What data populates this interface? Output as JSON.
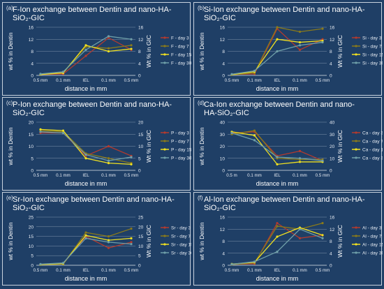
{
  "x_categories": [
    "0.5 mm",
    "0.1 mm",
    "IEL",
    "0.1 mm",
    "0.5 mm"
  ],
  "colors": [
    "#b33a2e",
    "#8a7a1a",
    "#f0e020",
    "#6f9fa8"
  ],
  "chart_data": [
    {
      "letter": "(a)",
      "type": "line",
      "title": "F-Ion exchange between Dentin and nano-HA-SiO₂-GIC",
      "xlabel": "distance in mm",
      "ylabel": "wt % in Dentin",
      "y2label": "Wt % in GIC",
      "ylim": [
        0,
        16
      ],
      "yticks": [
        "0",
        "4",
        "8",
        "12",
        "16"
      ],
      "categories": [
        "0.5 mm",
        "0.1 mm",
        "IEL",
        "0.1 mm",
        "0.5 mm"
      ],
      "series": [
        {
          "name": "F - day 3",
          "values": [
            0.3,
            0.5,
            6.5,
            12.5,
            8.5
          ]
        },
        {
          "name": "F - day 7",
          "values": [
            0.4,
            1.0,
            9.5,
            9.0,
            10.0
          ]
        },
        {
          "name": "F - day 15",
          "values": [
            0.3,
            0.8,
            10.0,
            8.0,
            8.8
          ]
        },
        {
          "name": "F - day 30",
          "values": [
            0.5,
            1.2,
            8.5,
            13.0,
            12.0
          ]
        }
      ]
    },
    {
      "letter": "(b)",
      "type": "line",
      "title": "Si-Ion exchange between Dentin and nano-HA-SiO₂-GIC",
      "xlabel": "distance in mm",
      "ylabel": "wt % in Dentin",
      "y2label": "Wt % in GIC",
      "ylim": [
        0,
        16
      ],
      "yticks": [
        "0",
        "4",
        "8",
        "12",
        "16"
      ],
      "categories": [
        "0.5 mm",
        "0.1 mm",
        "IEL",
        "0.1 mm",
        "0.5 mm"
      ],
      "series": [
        {
          "name": "Si - day 3",
          "values": [
            0.3,
            0.5,
            15.5,
            8.5,
            12.0
          ]
        },
        {
          "name": "Si - day 7",
          "values": [
            0.2,
            0.8,
            16.0,
            14.5,
            15.5
          ]
        },
        {
          "name": "Si - day 15",
          "values": [
            0.3,
            1.2,
            12.0,
            11.0,
            11.5
          ]
        },
        {
          "name": "Si - day 30",
          "values": [
            0.4,
            1.5,
            8.0,
            10.0,
            11.0
          ]
        }
      ]
    },
    {
      "letter": "(c)",
      "type": "line",
      "title": "P-Ion exchange between Dentin and nano-HA-SiO₂-GIC",
      "xlabel": "distance in mm",
      "ylabel": "wt % in Dentin",
      "y2label": "Wt % in GIC",
      "ylim": [
        0,
        20
      ],
      "yticks": [
        "0",
        "5",
        "10",
        "15",
        "20"
      ],
      "categories": [
        "0.5 mm",
        "0.1 mm",
        "IEL",
        "0.1 mm",
        "0.5 mm"
      ],
      "series": [
        {
          "name": "P - day 3",
          "values": [
            15.5,
            15.5,
            6.0,
            10.0,
            6.0
          ]
        },
        {
          "name": "P - day 7",
          "values": [
            16.5,
            16.0,
            7.0,
            5.0,
            3.0
          ]
        },
        {
          "name": "P - day 15",
          "values": [
            17.0,
            16.5,
            5.0,
            3.0,
            2.5
          ]
        },
        {
          "name": "P - day 30",
          "values": [
            16.0,
            15.5,
            6.5,
            4.0,
            5.5
          ]
        }
      ]
    },
    {
      "letter": "(d)",
      "type": "line",
      "title": "Ca-Ion exchange between Dentin and nano-HA-SiO₂-GIC",
      "xlabel": "distance in mm",
      "ylabel": "wt % in Dentin",
      "y2label": "Wt % in GIC",
      "ylim": [
        0,
        40
      ],
      "yticks": [
        "0",
        "10",
        "20",
        "30",
        "40"
      ],
      "categories": [
        "0.5 m",
        "0.1 mm",
        "IEL",
        "0.1 mm",
        "0.5 mm"
      ],
      "series": [
        {
          "name": "Ca - day 3",
          "values": [
            31.0,
            32.0,
            12.0,
            16.0,
            8.0
          ]
        },
        {
          "name": "Ca - day 7",
          "values": [
            30.0,
            33.0,
            10.0,
            9.0,
            9.0
          ]
        },
        {
          "name": "Ca - day 15",
          "values": [
            32.0,
            29.0,
            5.0,
            7.0,
            7.0
          ]
        },
        {
          "name": "Ca - day 30",
          "values": [
            31.0,
            25.0,
            11.0,
            10.0,
            8.0
          ]
        }
      ]
    },
    {
      "letter": "(e)",
      "type": "line",
      "title": "Sr-Ion exchange between Dentin and nano-HA-SiO₂-GIC",
      "xlabel": "distance in mm",
      "ylabel": "wt % in Dentin",
      "y2label": "Wt % in GIC",
      "ylim": [
        0,
        25
      ],
      "yticks": [
        "0",
        "5",
        "10",
        "15",
        "20",
        "25"
      ],
      "categories": [
        "0.5 mm",
        "0.1 mm",
        "IEL",
        "0.1 mm",
        "0.5 mm"
      ],
      "series": [
        {
          "name": "Sr - day 3",
          "values": [
            0.5,
            0.8,
            15.0,
            9.0,
            12.0
          ]
        },
        {
          "name": "Sr - day 7",
          "values": [
            0.3,
            0.6,
            17.0,
            15.0,
            19.0
          ]
        },
        {
          "name": "Sr - day 15",
          "values": [
            0.4,
            0.9,
            15.5,
            13.0,
            14.0
          ]
        },
        {
          "name": "Sr - day 30",
          "values": [
            0.6,
            1.2,
            14.0,
            12.0,
            11.0
          ]
        }
      ]
    },
    {
      "letter": "(f)",
      "type": "line",
      "title": "Al-Ion exchange between Dentin and nano-HA-SiO₂-GIC",
      "xlabel": "distance in mm",
      "ylabel": "wt % in Dentin",
      "y2label": "Wt % in GIC",
      "ylim": [
        0,
        16
      ],
      "yticks": [
        "0",
        "4",
        "8",
        "12",
        "16"
      ],
      "categories": [
        "0.5 mm",
        "0.1 mm",
        "IEL",
        "0.1 mm",
        "0.5 mm"
      ],
      "series": [
        {
          "name": "Al - day 3",
          "values": [
            0.3,
            0.5,
            14.0,
            9.0,
            10.0
          ]
        },
        {
          "name": "Al - day 7",
          "values": [
            0.2,
            0.8,
            13.0,
            12.0,
            14.0
          ]
        },
        {
          "name": "Al - day 15",
          "values": [
            0.4,
            1.0,
            9.5,
            12.5,
            10.0
          ]
        },
        {
          "name": "Al - day 30",
          "values": [
            0.3,
            1.2,
            4.5,
            12.0,
            9.0
          ]
        }
      ]
    }
  ]
}
